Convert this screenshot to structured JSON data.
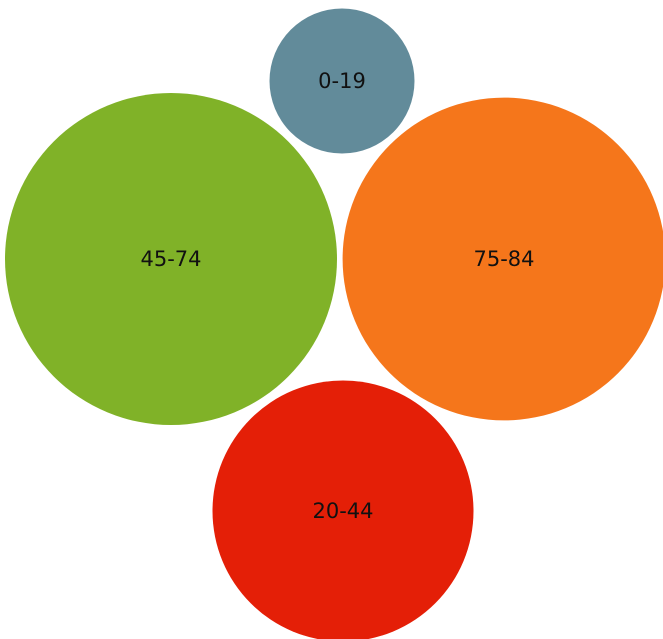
{
  "chart_data": {
    "type": "bubble",
    "title": "",
    "series": [
      {
        "label": "0-19",
        "value": 21,
        "color": "#628b9a"
      },
      {
        "label": "45-74",
        "value": 110,
        "color": "#80b228"
      },
      {
        "label": "75-84",
        "value": 104,
        "color": "#f5761b"
      },
      {
        "label": "20-44",
        "value": 68,
        "color": "#e41f07"
      }
    ],
    "legend": "none",
    "grid": false,
    "axes": false
  }
}
